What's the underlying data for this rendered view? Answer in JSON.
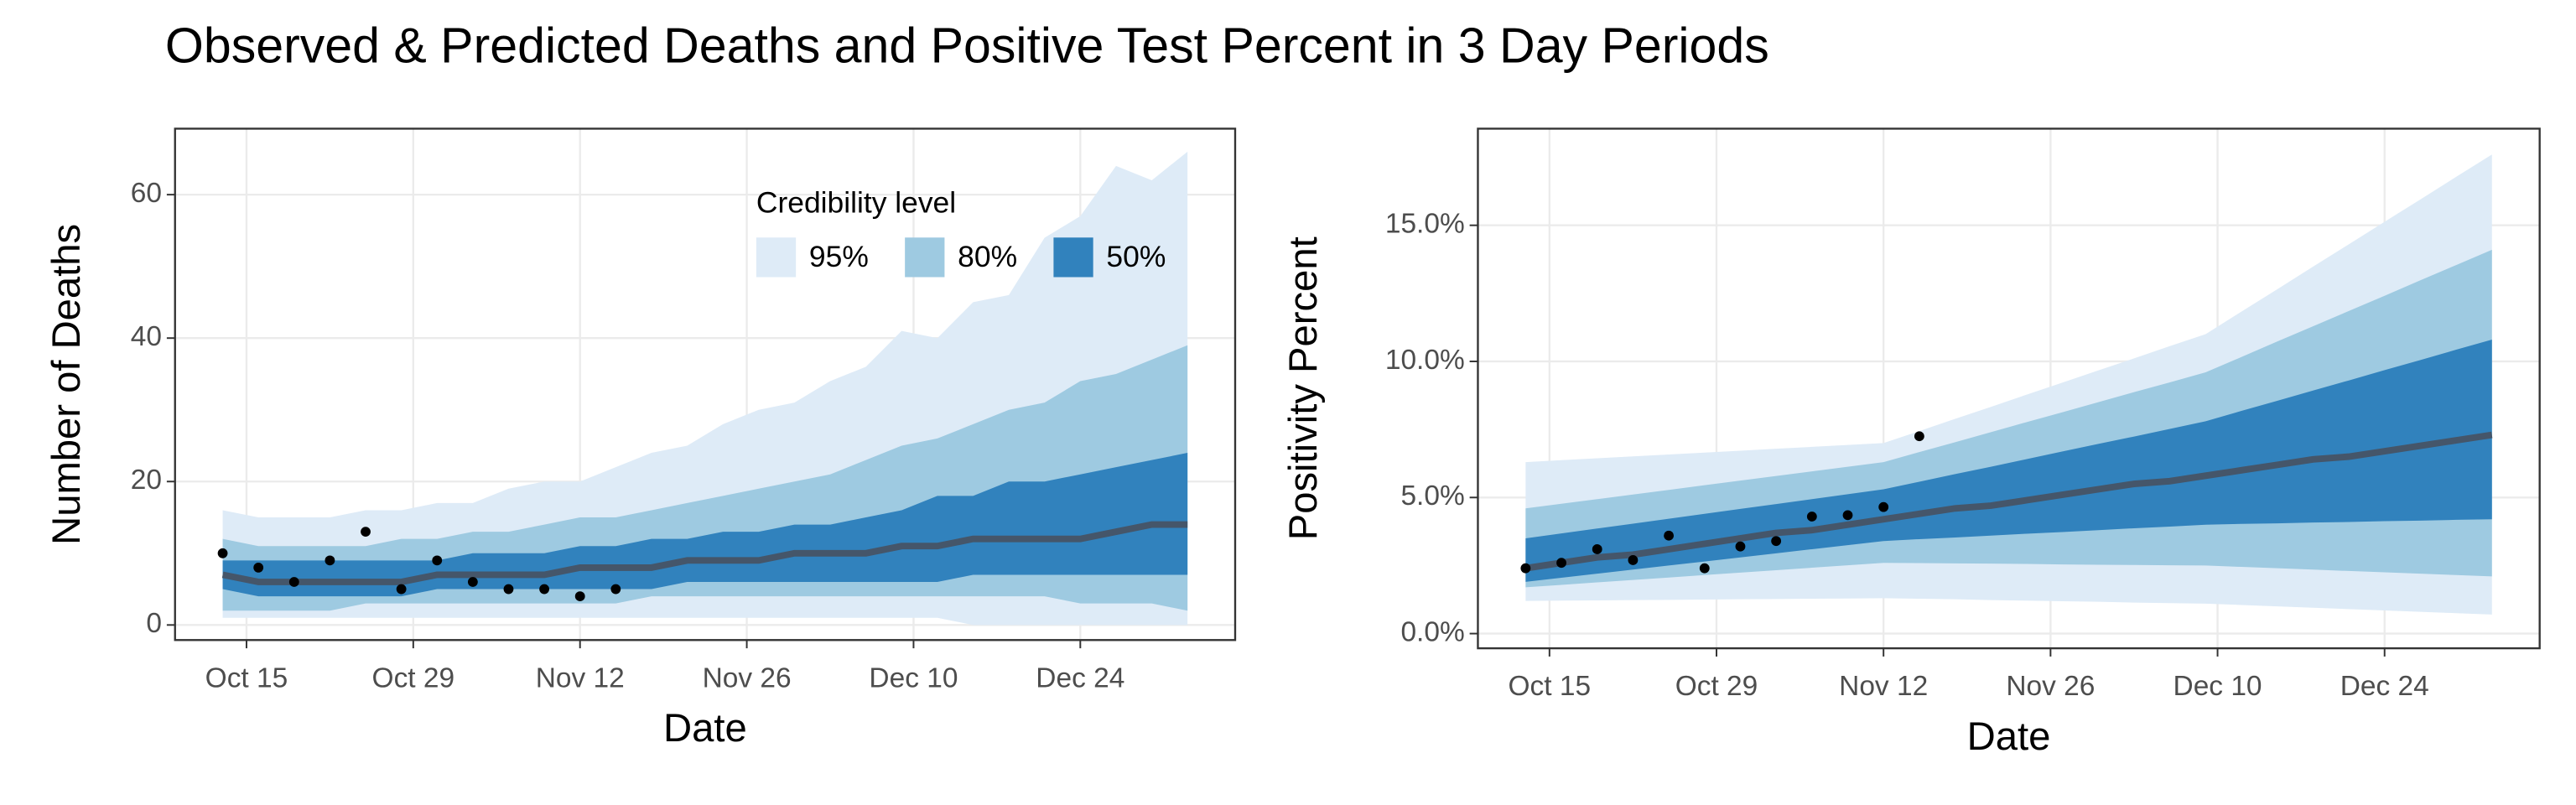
{
  "title": "Observed & Predicted Deaths and Positive Test Percent in 3 Day Periods",
  "chart_data": [
    {
      "type": "fan",
      "x_label": "Date",
      "y_label": "Number of Deaths",
      "x": [
        "Oct 13",
        "Oct 16",
        "Oct 19",
        "Oct 22",
        "Oct 25",
        "Oct 28",
        "Oct 31",
        "Nov 3",
        "Nov 6",
        "Nov 9",
        "Nov 12",
        "Nov 15",
        "Nov 18",
        "Nov 21",
        "Nov 24",
        "Nov 27",
        "Nov 30",
        "Dec 3",
        "Dec 6",
        "Dec 9",
        "Dec 12",
        "Dec 15",
        "Dec 18",
        "Dec 21",
        "Dec 24",
        "Dec 27",
        "Dec 30",
        "Jan 2"
      ],
      "xlim": [
        "Oct 9",
        "Jan 6"
      ],
      "xticks": [
        "Oct 15",
        "Oct 29",
        "Nov 12",
        "Nov 26",
        "Dec 10",
        "Dec 24"
      ],
      "ylim": [
        -2.1,
        69.2
      ],
      "yticks": [
        0,
        20,
        40,
        60
      ],
      "grid": true,
      "legend": {
        "title": "Credibility level",
        "position": "top-right"
      },
      "bands": [
        {
          "name": "95%",
          "color": "#deebf7",
          "lower": [
            1,
            1,
            1,
            1,
            1,
            1,
            1,
            1,
            1,
            1,
            1,
            1,
            1,
            1,
            1,
            1,
            1,
            1,
            1,
            1,
            1,
            0,
            0,
            0,
            0,
            0,
            0,
            0
          ],
          "upper": [
            16,
            15,
            15,
            15,
            16,
            16,
            17,
            17,
            19,
            20,
            20,
            22,
            24,
            25,
            28,
            30,
            31,
            34,
            36,
            41,
            40,
            45,
            46,
            54,
            57,
            64,
            62,
            66
          ]
        },
        {
          "name": "80%",
          "color": "#9ecae1",
          "lower": [
            2,
            2,
            2,
            2,
            3,
            3,
            3,
            3,
            3,
            3,
            3,
            3,
            4,
            4,
            4,
            4,
            4,
            4,
            4,
            4,
            4,
            4,
            4,
            4,
            3,
            3,
            3,
            2
          ],
          "upper": [
            12,
            11,
            11,
            11,
            11,
            12,
            12,
            13,
            13,
            14,
            15,
            15,
            16,
            17,
            18,
            19,
            20,
            21,
            23,
            25,
            26,
            28,
            30,
            31,
            34,
            35,
            37,
            39
          ]
        },
        {
          "name": "50%",
          "color": "#3182bd",
          "lower": [
            5,
            4,
            4,
            4,
            4,
            4,
            5,
            5,
            5,
            5,
            5,
            5,
            5,
            6,
            6,
            6,
            6,
            6,
            6,
            6,
            6,
            7,
            7,
            7,
            7,
            7,
            7,
            7
          ],
          "upper": [
            9,
            9,
            9,
            9,
            9,
            9,
            9,
            10,
            10,
            10,
            11,
            11,
            12,
            12,
            13,
            13,
            14,
            14,
            15,
            16,
            18,
            18,
            20,
            20,
            21,
            22,
            23,
            24
          ]
        }
      ],
      "median": {
        "color": "#45566a",
        "values": [
          7,
          6,
          6,
          6,
          6,
          6,
          7,
          7,
          7,
          7,
          8,
          8,
          8,
          9,
          9,
          9,
          10,
          10,
          10,
          11,
          11,
          12,
          12,
          12,
          12,
          13,
          14,
          14
        ]
      },
      "observed": {
        "color": "#000000",
        "values": [
          10,
          8,
          6,
          9,
          13,
          5,
          9,
          6,
          5,
          5,
          4,
          5,
          null,
          null,
          null,
          null,
          null,
          null,
          null,
          null,
          null,
          null,
          null,
          null,
          null,
          null,
          null,
          null
        ]
      }
    },
    {
      "type": "fan",
      "x_label": "Date",
      "y_label": "Positivity Percent",
      "x": [
        "Oct 13",
        "Oct 16",
        "Oct 19",
        "Oct 22",
        "Oct 25",
        "Oct 28",
        "Oct 31",
        "Nov 3",
        "Nov 6",
        "Nov 9",
        "Nov 12",
        "Nov 15",
        "Nov 18",
        "Nov 21",
        "Nov 24",
        "Nov 27",
        "Nov 30",
        "Dec 3",
        "Dec 6",
        "Dec 9",
        "Dec 12",
        "Dec 15",
        "Dec 18",
        "Dec 21",
        "Dec 24",
        "Dec 27",
        "Dec 30",
        "Jan 2"
      ],
      "xlim": [
        "Oct 9",
        "Jan 6"
      ],
      "xticks": [
        "Oct 15",
        "Oct 29",
        "Nov 12",
        "Nov 26",
        "Dec 10",
        "Dec 24"
      ],
      "ylim": [
        -0.54,
        18.55
      ],
      "yticks": [
        {
          "value": 0,
          "label": "0.0%"
        },
        {
          "value": 5,
          "label": "5.0%"
        },
        {
          "value": 10,
          "label": "10.0%"
        },
        {
          "value": 15,
          "label": "15.0%"
        }
      ],
      "grid": true,
      "bands": [
        {
          "color": "#deebf7",
          "lower": [
            1.2,
            1.21,
            1.22,
            1.23,
            1.24,
            1.25,
            1.26,
            1.27,
            1.28,
            1.29,
            1.3,
            1.28,
            1.26,
            1.23,
            1.21,
            1.19,
            1.17,
            1.14,
            1.12,
            1.1,
            1.05,
            1.0,
            0.95,
            0.9,
            0.85,
            0.8,
            0.75,
            0.7
          ],
          "upper": [
            6.3,
            6.37,
            6.44,
            6.51,
            6.58,
            6.65,
            6.72,
            6.79,
            6.86,
            6.93,
            7.0,
            7.44,
            7.89,
            8.33,
            8.78,
            9.22,
            9.67,
            10.11,
            10.56,
            11.0,
            11.83,
            12.65,
            13.48,
            14.3,
            15.13,
            15.95,
            16.78,
            17.6
          ]
        },
        {
          "color": "#9ecae1",
          "lower": [
            1.7,
            1.79,
            1.88,
            1.97,
            2.06,
            2.15,
            2.24,
            2.33,
            2.42,
            2.51,
            2.6,
            2.59,
            2.58,
            2.57,
            2.56,
            2.54,
            2.53,
            2.52,
            2.51,
            2.5,
            2.45,
            2.4,
            2.35,
            2.3,
            2.25,
            2.2,
            2.15,
            2.1
          ],
          "upper": [
            4.6,
            4.77,
            4.94,
            5.11,
            5.28,
            5.45,
            5.62,
            5.79,
            5.96,
            6.13,
            6.3,
            6.67,
            7.03,
            7.4,
            7.77,
            8.13,
            8.5,
            8.87,
            9.23,
            9.6,
            10.16,
            10.73,
            11.29,
            11.85,
            12.41,
            12.98,
            13.54,
            14.1
          ]
        },
        {
          "color": "#3182bd",
          "lower": [
            1.9,
            2.05,
            2.2,
            2.35,
            2.5,
            2.65,
            2.8,
            2.95,
            3.1,
            3.25,
            3.4,
            3.47,
            3.53,
            3.6,
            3.67,
            3.73,
            3.8,
            3.87,
            3.93,
            4.0,
            4.03,
            4.05,
            4.08,
            4.1,
            4.13,
            4.15,
            4.18,
            4.2
          ],
          "upper": [
            3.5,
            3.68,
            3.86,
            4.04,
            4.22,
            4.4,
            4.58,
            4.76,
            4.94,
            5.12,
            5.3,
            5.58,
            5.86,
            6.13,
            6.41,
            6.69,
            6.97,
            7.24,
            7.52,
            7.8,
            8.18,
            8.55,
            8.93,
            9.3,
            9.68,
            10.05,
            10.43,
            10.8
          ]
        }
      ],
      "median": {
        "color": "#45566a",
        "values": [
          2.4,
          2.6,
          2.8,
          2.9,
          3.1,
          3.3,
          3.5,
          3.7,
          3.8,
          4.0,
          4.2,
          4.4,
          4.6,
          4.7,
          4.9,
          5.1,
          5.3,
          5.5,
          5.6,
          5.8,
          6.0,
          6.2,
          6.4,
          6.5,
          6.7,
          6.9,
          7.1,
          7.3
        ]
      },
      "observed": {
        "color": "#000000",
        "values": [
          2.4,
          2.6,
          3.1,
          2.7,
          3.6,
          2.4,
          3.2,
          3.4,
          4.3,
          4.35,
          4.65,
          7.25,
          null,
          null,
          null,
          null,
          null,
          null,
          null,
          null,
          null,
          null,
          null,
          null,
          null,
          null,
          null,
          null
        ]
      }
    }
  ]
}
